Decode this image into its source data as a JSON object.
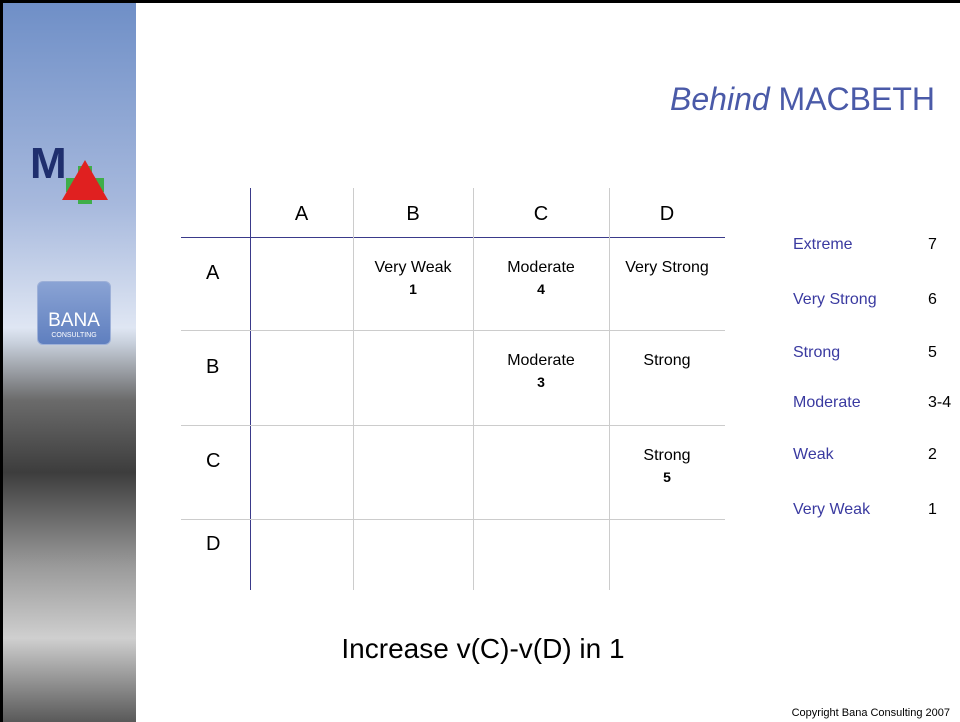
{
  "title": {
    "emphasis": "Behind",
    "rest": "MACBETH"
  },
  "logo": {
    "letter": "M",
    "brand": "BANA",
    "brand_sub": "CONSULTING"
  },
  "matrix": {
    "columns": [
      "A",
      "B",
      "C",
      "D"
    ],
    "rows": [
      {
        "label": "A",
        "cells": [
          null,
          {
            "text": "Very Weak",
            "number": 1
          },
          {
            "text": "Moderate",
            "number": 4
          },
          {
            "text": "Very Strong"
          }
        ]
      },
      {
        "label": "B",
        "cells": [
          null,
          null,
          {
            "text": "Moderate",
            "number": 3
          },
          {
            "text": "Strong"
          }
        ]
      },
      {
        "label": "C",
        "cells": [
          null,
          null,
          null,
          {
            "text": "Strong",
            "number": 5
          }
        ]
      },
      {
        "label": "D",
        "cells": [
          null,
          null,
          null,
          null
        ]
      }
    ]
  },
  "scale": [
    {
      "name": "Extreme",
      "value": 7
    },
    {
      "name": "Very Strong",
      "value": 6
    },
    {
      "name": "Strong",
      "value": 5
    },
    {
      "name": "Moderate",
      "value": "3-4"
    },
    {
      "name": "Weak",
      "value": 2
    },
    {
      "name": "Very Weak",
      "value": 1
    }
  ],
  "footer": "Increase v(C)-v(D) in 1",
  "copyright": "Copyright Bana Consulting 2007"
}
